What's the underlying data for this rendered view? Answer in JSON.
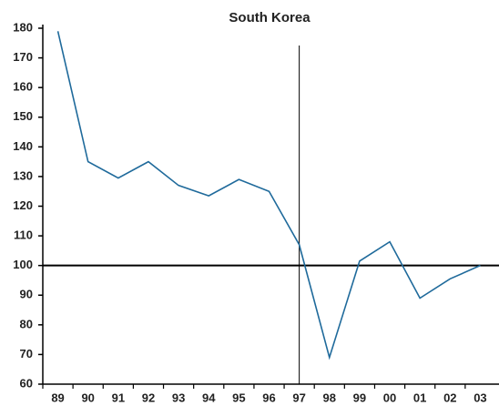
{
  "chart_data": {
    "type": "line",
    "title": "South Korea",
    "categories": [
      "89",
      "90",
      "91",
      "92",
      "93",
      "94",
      "95",
      "96",
      "97",
      "98",
      "99",
      "00",
      "01",
      "02",
      "03"
    ],
    "series": [
      {
        "name": "South Korea",
        "color": "#1f6a9b",
        "values": [
          179,
          135,
          129.5,
          135,
          127,
          123.5,
          129,
          125,
          107,
          69,
          101.5,
          108,
          89,
          95.5,
          100
        ]
      }
    ],
    "ylim": [
      60,
      180
    ],
    "yticks": [
      60,
      70,
      80,
      90,
      100,
      110,
      120,
      130,
      140,
      150,
      160,
      170,
      180
    ],
    "reference_y": 100,
    "reference_category": "97"
  }
}
